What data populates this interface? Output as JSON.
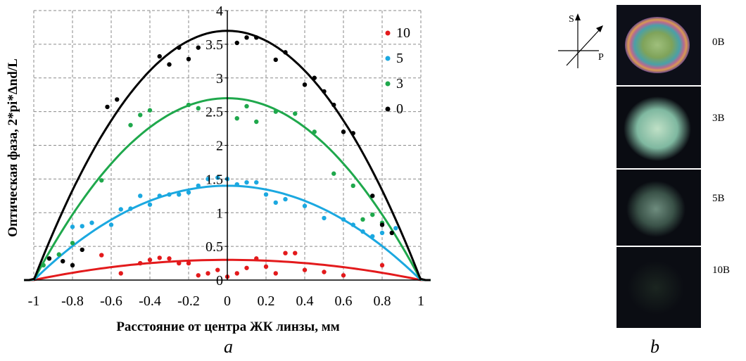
{
  "chart_data": {
    "type": "scatter",
    "xlabel": "Расстояние от центра ЖК линзы, мм",
    "ylabel": "Оптическая фаза, 2*pi*Δnd/L",
    "xlim": [
      -1,
      1
    ],
    "ylim": [
      0,
      4
    ],
    "xticks": [
      "-1",
      "-0.8",
      "-0.6",
      "-0.4",
      "-0.2",
      "0",
      "0.2",
      "0.4",
      "0.6",
      "0.8",
      "1"
    ],
    "yticks": [
      "0",
      "0.5",
      "1",
      "1.5",
      "2",
      "2.5",
      "3",
      "3.5",
      "4"
    ],
    "grid": true,
    "legend_position": "top-right",
    "series": [
      {
        "name": "10",
        "color": "#e31a1c",
        "fit_peak": 0.3,
        "points": [
          [
            -0.65,
            0.37
          ],
          [
            -0.55,
            0.1
          ],
          [
            -0.45,
            0.25
          ],
          [
            -0.4,
            0.3
          ],
          [
            -0.35,
            0.33
          ],
          [
            -0.3,
            0.32
          ],
          [
            -0.25,
            0.25
          ],
          [
            -0.2,
            0.25
          ],
          [
            -0.15,
            0.07
          ],
          [
            -0.1,
            0.1
          ],
          [
            -0.05,
            0.15
          ],
          [
            0,
            0.05
          ],
          [
            0.05,
            0.1
          ],
          [
            0.1,
            0.18
          ],
          [
            0.15,
            0.32
          ],
          [
            0.2,
            0.2
          ],
          [
            0.25,
            0.1
          ],
          [
            0.3,
            0.4
          ],
          [
            0.35,
            0.4
          ],
          [
            0.4,
            0.15
          ],
          [
            0.5,
            0.12
          ],
          [
            0.6,
            0.07
          ],
          [
            0.8,
            0.22
          ]
        ]
      },
      {
        "name": "5",
        "color": "#1ba8e0",
        "fit_peak": 1.4,
        "points": [
          [
            -0.8,
            0.79
          ],
          [
            -0.75,
            0.8
          ],
          [
            -0.7,
            0.85
          ],
          [
            -0.6,
            0.82
          ],
          [
            -0.55,
            1.05
          ],
          [
            -0.5,
            1.06
          ],
          [
            -0.45,
            1.25
          ],
          [
            -0.4,
            1.12
          ],
          [
            -0.35,
            1.25
          ],
          [
            -0.3,
            1.27
          ],
          [
            -0.25,
            1.27
          ],
          [
            -0.2,
            1.3
          ],
          [
            -0.15,
            1.4
          ],
          [
            -0.1,
            1.5
          ],
          [
            -0.05,
            1.52
          ],
          [
            0,
            1.5
          ],
          [
            0.05,
            1.42
          ],
          [
            0.1,
            1.45
          ],
          [
            0.15,
            1.45
          ],
          [
            0.2,
            1.27
          ],
          [
            0.25,
            1.15
          ],
          [
            0.3,
            1.2
          ],
          [
            0.4,
            1.1
          ],
          [
            0.5,
            0.92
          ],
          [
            0.6,
            0.9
          ],
          [
            0.65,
            0.82
          ],
          [
            0.7,
            0.72
          ],
          [
            0.75,
            0.65
          ],
          [
            0.8,
            0.7
          ],
          [
            0.87,
            0.77
          ]
        ]
      },
      {
        "name": "3",
        "color": "#1fa84c",
        "fit_peak": 2.7,
        "points": [
          [
            -0.95,
            0.22
          ],
          [
            -0.87,
            0.38
          ],
          [
            -0.8,
            0.55
          ],
          [
            -0.65,
            1.48
          ],
          [
            -0.5,
            2.3
          ],
          [
            -0.45,
            2.45
          ],
          [
            -0.4,
            2.52
          ],
          [
            -0.2,
            2.6
          ],
          [
            -0.15,
            2.55
          ],
          [
            0.05,
            2.4
          ],
          [
            0.1,
            2.58
          ],
          [
            0.15,
            2.35
          ],
          [
            0.25,
            2.5
          ],
          [
            0.35,
            2.47
          ],
          [
            0.45,
            2.2
          ],
          [
            0.55,
            1.58
          ],
          [
            0.65,
            1.4
          ],
          [
            0.7,
            0.9
          ],
          [
            0.75,
            0.97
          ],
          [
            0.8,
            0.85
          ]
        ]
      },
      {
        "name": "0",
        "color": "#000000",
        "fit_peak": 3.7,
        "points": [
          [
            -0.92,
            0.32
          ],
          [
            -0.85,
            0.28
          ],
          [
            -0.8,
            0.22
          ],
          [
            -0.75,
            0.45
          ],
          [
            -0.62,
            2.57
          ],
          [
            -0.57,
            2.68
          ],
          [
            -0.35,
            3.32
          ],
          [
            -0.3,
            3.2
          ],
          [
            -0.25,
            3.45
          ],
          [
            -0.2,
            3.28
          ],
          [
            -0.15,
            3.45
          ],
          [
            0.05,
            3.52
          ],
          [
            0.1,
            3.6
          ],
          [
            0.15,
            3.6
          ],
          [
            0.25,
            3.27
          ],
          [
            0.3,
            3.38
          ],
          [
            0.4,
            2.9
          ],
          [
            0.45,
            3.0
          ],
          [
            0.5,
            2.8
          ],
          [
            0.55,
            2.6
          ],
          [
            0.6,
            2.2
          ],
          [
            0.65,
            2.18
          ],
          [
            0.75,
            1.25
          ],
          [
            0.8,
            0.82
          ],
          [
            0.85,
            0.7
          ]
        ]
      }
    ]
  },
  "panel_a_label": "a",
  "panel_b_label": "b",
  "polarization_axes": {
    "vertical": "S",
    "horizontal": "P"
  },
  "photos": [
    {
      "label": "0B",
      "icon": "iridescent-lens-icon"
    },
    {
      "label": "3B",
      "icon": "green-glow-lens-icon"
    },
    {
      "label": "5B",
      "icon": "dim-green-lens-icon"
    },
    {
      "label": "10B",
      "icon": "dark-lens-icon"
    }
  ]
}
